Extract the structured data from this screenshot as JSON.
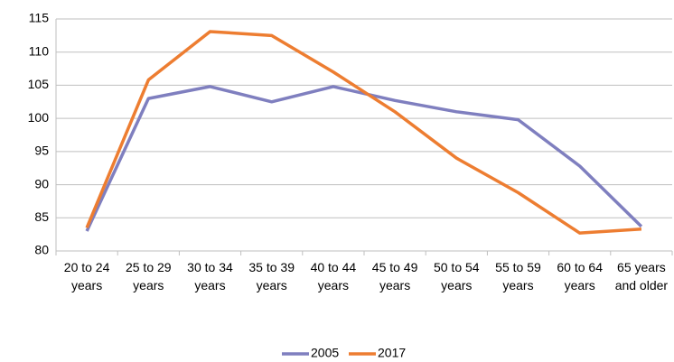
{
  "chart_data": {
    "type": "line",
    "categories": [
      "20 to 24 years",
      "25 to 29 years",
      "30 to 34 years",
      "35 to 39 years",
      "40 to 44 years",
      "45 to 49 years",
      "50 to 54 years",
      "55 to 59 years",
      "60 to 64 years",
      "65 years and older"
    ],
    "series": [
      {
        "name": "2005",
        "color": "#7f7fbf",
        "values": [
          83,
          103,
          104.8,
          102.5,
          104.8,
          102.7,
          101,
          99.8,
          92.8,
          83.7
        ]
      },
      {
        "name": "2017",
        "color": "#ed7d31",
        "values": [
          83.5,
          105.8,
          113.1,
          112.5,
          107,
          101,
          94,
          88.8,
          82.7,
          83.3
        ]
      }
    ],
    "ylim": [
      80,
      115
    ],
    "yticks": [
      80,
      85,
      90,
      95,
      100,
      105,
      110,
      115
    ],
    "grid": true,
    "legend": "bottom"
  }
}
